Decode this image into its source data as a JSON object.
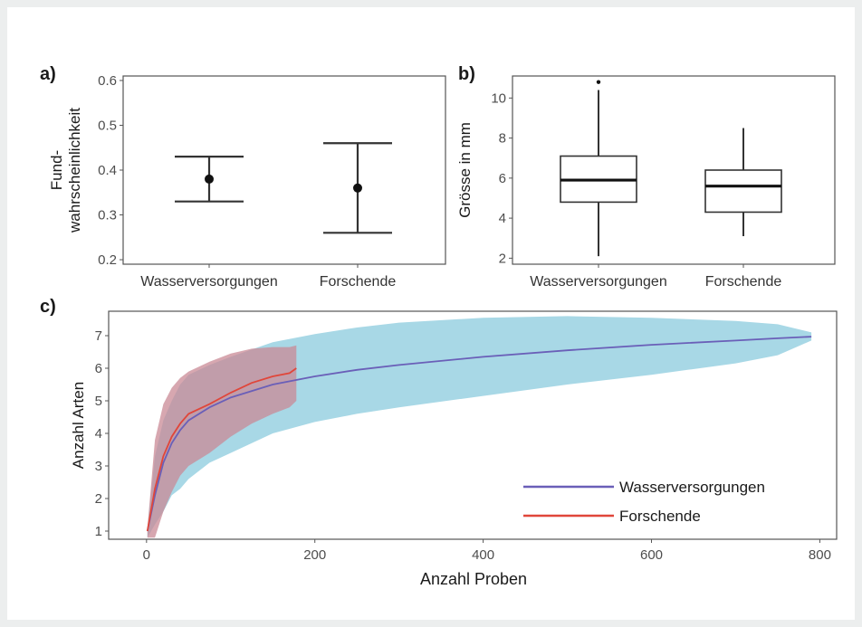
{
  "colors": {
    "wasser_band": "#a8d8e6",
    "wasser_line": "#6a5fb8",
    "forschende_band": "#c98a96",
    "forschende_line": "#e0463a",
    "panel_border": "#555555"
  },
  "chart_data": [
    {
      "type": "errorbar",
      "panel_label": "a)",
      "ylabel_line1": "Fund-",
      "ylabel_line2": "wahrscheinlichkeit",
      "xlabel": "",
      "categories": [
        "Wasserversorgungen",
        "Forschende"
      ],
      "estimates": [
        0.38,
        0.36
      ],
      "lower": [
        0.33,
        0.26
      ],
      "upper": [
        0.43,
        0.46
      ],
      "ylim": [
        0.19,
        0.61
      ],
      "yticks": [
        0.2,
        0.3,
        0.4,
        0.5,
        0.6
      ],
      "ytick_labels": [
        "0.2",
        "0.3",
        "0.4",
        "0.5",
        "0.6"
      ],
      "grid": false
    },
    {
      "type": "boxplot",
      "panel_label": "b)",
      "ylabel": "Grösse in mm",
      "xlabel": "",
      "categories": [
        "Wasserversorgungen",
        "Forschende"
      ],
      "boxes": [
        {
          "min": 2.1,
          "q1": 4.8,
          "median": 5.9,
          "q3": 7.1,
          "max": 10.4,
          "outliers": [
            10.8
          ]
        },
        {
          "min": 3.1,
          "q1": 4.3,
          "median": 5.6,
          "q3": 6.4,
          "max": 8.5,
          "outliers": []
        }
      ],
      "ylim": [
        1.7,
        11.1
      ],
      "yticks": [
        2,
        4,
        6,
        8,
        10
      ],
      "ytick_labels": [
        "2",
        "4",
        "6",
        "8",
        "10"
      ],
      "grid": false
    },
    {
      "type": "line",
      "panel_label": "c)",
      "xlabel": "Anzahl Proben",
      "ylabel": "Anzahl Arten",
      "xlim": [
        -45,
        820
      ],
      "ylim": [
        0.75,
        7.75
      ],
      "xticks": [
        0,
        200,
        400,
        600,
        800
      ],
      "xtick_labels": [
        "0",
        "200",
        "400",
        "600",
        "800"
      ],
      "yticks": [
        1,
        2,
        3,
        4,
        5,
        6,
        7
      ],
      "ytick_labels": [
        "1",
        "2",
        "3",
        "4",
        "5",
        "6",
        "7"
      ],
      "grid": false,
      "legend_position": "bottom-right",
      "series": [
        {
          "name": "Wasserversorgungen",
          "x": [
            1,
            10,
            20,
            30,
            40,
            50,
            75,
            100,
            150,
            200,
            250,
            300,
            400,
            500,
            600,
            700,
            750,
            790
          ],
          "mean": [
            1,
            2.1,
            3.1,
            3.7,
            4.1,
            4.4,
            4.8,
            5.1,
            5.5,
            5.75,
            5.95,
            6.1,
            6.35,
            6.55,
            6.72,
            6.85,
            6.92,
            6.97
          ],
          "lower": [
            0.8,
            1.2,
            1.6,
            2.1,
            2.3,
            2.6,
            3.1,
            3.4,
            4.0,
            4.35,
            4.6,
            4.8,
            5.15,
            5.5,
            5.8,
            6.15,
            6.4,
            6.85
          ],
          "upper": [
            1.1,
            3.3,
            4.4,
            5.0,
            5.5,
            5.8,
            6.1,
            6.35,
            6.8,
            7.05,
            7.25,
            7.4,
            7.55,
            7.6,
            7.55,
            7.45,
            7.35,
            7.1
          ]
        },
        {
          "name": "Forschende",
          "x": [
            1,
            10,
            20,
            30,
            40,
            50,
            75,
            100,
            125,
            150,
            170,
            178
          ],
          "mean": [
            1,
            2.3,
            3.3,
            3.9,
            4.3,
            4.6,
            4.9,
            5.25,
            5.55,
            5.75,
            5.85,
            6.0
          ],
          "lower": [
            0.8,
            0.8,
            1.6,
            2.2,
            2.7,
            3.0,
            3.4,
            3.9,
            4.3,
            4.6,
            4.8,
            5.0
          ],
          "upper": [
            1.1,
            3.8,
            4.9,
            5.4,
            5.7,
            5.9,
            6.2,
            6.45,
            6.6,
            6.65,
            6.65,
            6.7
          ]
        }
      ]
    }
  ]
}
